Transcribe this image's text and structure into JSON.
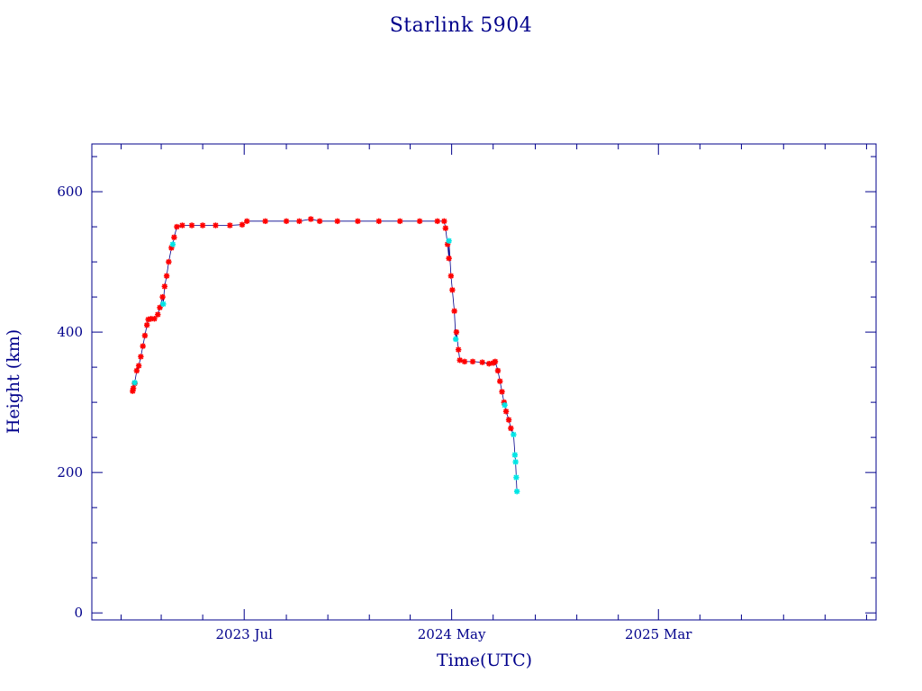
{
  "chart_data": {
    "type": "scatter",
    "title": "Starlink 5904",
    "xlabel": "Time(UTC)",
    "ylabel": "Height (km)",
    "x_axis": "date",
    "xlim": [
      "2022-11-19",
      "2026-01-15"
    ],
    "ylim": [
      -10,
      668
    ],
    "x_tick_labels": [
      {
        "date": "2023-07-01",
        "label": "2023 Jul"
      },
      {
        "date": "2024-05-01",
        "label": "2024 May"
      },
      {
        "date": "2025-03-01",
        "label": "2025 Mar"
      }
    ],
    "y_ticks": [
      0,
      200,
      400,
      600
    ],
    "grid": false,
    "legend": "none",
    "colors": {
      "axis": "#00008b",
      "series_main": "#ff0000",
      "series_highlight": "#00e5e5",
      "connector": "#00008b"
    },
    "series": [
      {
        "values": [
          [
            "2023-01-18",
            316
          ],
          [
            "2023-01-19",
            320
          ],
          [
            "2023-01-21",
            327
          ],
          [
            "2023-01-24",
            345
          ],
          [
            "2023-01-27",
            352
          ],
          [
            "2023-01-30",
            365
          ],
          [
            "2023-02-02",
            380
          ],
          [
            "2023-02-05",
            395
          ],
          [
            "2023-02-08",
            410
          ],
          [
            "2023-02-10",
            418
          ],
          [
            "2023-02-14",
            419
          ],
          [
            "2023-02-19",
            419
          ],
          [
            "2023-02-24",
            425
          ],
          [
            "2023-02-27",
            435
          ],
          [
            "2023-03-03",
            450
          ],
          [
            "2023-03-06",
            465
          ],
          [
            "2023-03-09",
            480
          ],
          [
            "2023-03-12",
            500
          ],
          [
            "2023-03-16",
            520
          ],
          [
            "2023-03-20",
            535
          ],
          [
            "2023-03-24",
            550
          ],
          [
            "2023-04-01",
            552
          ],
          [
            "2023-04-15",
            552
          ],
          [
            "2023-05-01",
            552
          ],
          [
            "2023-05-20",
            552
          ],
          [
            "2023-06-10",
            552
          ],
          [
            "2023-06-28",
            553
          ],
          [
            "2023-07-05",
            558
          ],
          [
            "2023-08-01",
            558
          ],
          [
            "2023-09-01",
            558
          ],
          [
            "2023-09-20",
            558
          ],
          [
            "2023-10-07",
            561
          ],
          [
            "2023-10-20",
            558
          ],
          [
            "2023-11-15",
            558
          ],
          [
            "2023-12-15",
            558
          ],
          [
            "2024-01-15",
            558
          ],
          [
            "2024-02-15",
            558
          ],
          [
            "2024-03-15",
            558
          ],
          [
            "2024-04-10",
            558
          ],
          [
            "2024-04-20",
            558
          ],
          [
            "2024-04-22",
            548
          ],
          [
            "2024-04-25",
            525
          ],
          [
            "2024-04-27",
            505
          ],
          [
            "2024-04-30",
            480
          ],
          [
            "2024-05-02",
            460
          ],
          [
            "2024-05-05",
            430
          ],
          [
            "2024-05-08",
            400
          ],
          [
            "2024-05-11",
            375
          ],
          [
            "2024-05-13",
            360
          ],
          [
            "2024-05-20",
            358
          ],
          [
            "2024-06-01",
            358
          ],
          [
            "2024-06-15",
            357
          ],
          [
            "2024-06-25",
            355
          ],
          [
            "2024-07-01",
            356
          ],
          [
            "2024-07-04",
            358
          ],
          [
            "2024-07-08",
            345
          ],
          [
            "2024-07-11",
            330
          ],
          [
            "2024-07-14",
            315
          ],
          [
            "2024-07-17",
            300
          ],
          [
            "2024-07-20",
            287
          ],
          [
            "2024-07-24",
            275
          ],
          [
            "2024-07-27",
            263
          ]
        ]
      },
      {
        "values": [
          [
            "2023-01-21",
            328
          ],
          [
            "2023-03-04",
            440
          ],
          [
            "2023-03-18",
            525
          ],
          [
            "2024-04-27",
            530
          ],
          [
            "2024-05-07",
            390
          ],
          [
            "2024-07-18",
            296
          ],
          [
            "2024-07-31",
            254
          ],
          [
            "2024-08-02",
            225
          ],
          [
            "2024-08-03",
            215
          ],
          [
            "2024-08-04",
            193
          ],
          [
            "2024-08-05",
            173
          ]
        ]
      }
    ]
  }
}
